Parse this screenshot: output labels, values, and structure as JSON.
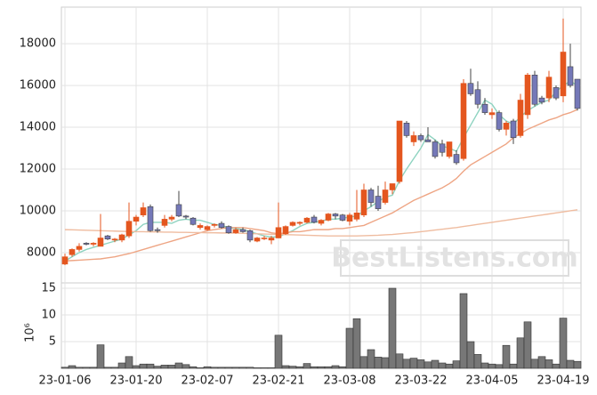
{
  "chart_data": [
    {
      "type": "candlestick",
      "watermark": "BestListens.com",
      "up_color": "#e4561f",
      "down_color": "#7478b8",
      "grid": true,
      "ylim": [
        6550,
        19750
      ],
      "yticks": [
        8000,
        10000,
        12000,
        14000,
        16000,
        18000
      ],
      "open": [
        7450,
        7900,
        8150,
        8450,
        8400,
        8300,
        8800,
        8600,
        8600,
        8800,
        9500,
        9800,
        10200,
        9100,
        9300,
        9600,
        10300,
        9750,
        9650,
        9200,
        9100,
        9300,
        9400,
        9250,
        8950,
        9100,
        9050,
        8550,
        8700,
        8600,
        8700,
        8900,
        9300,
        9400,
        9450,
        9700,
        9400,
        9550,
        9850,
        9800,
        9500,
        9600,
        9800,
        11000,
        10700,
        10400,
        11000,
        11400,
        14200,
        13300,
        13600,
        13400,
        13300,
        13200,
        12600,
        12700,
        12500,
        16100,
        15800,
        15100,
        14600,
        14700,
        13900,
        14300,
        13600,
        14600,
        16500,
        15400,
        15400,
        15900,
        15500,
        16900,
        16300
      ],
      "high": [
        7950,
        8200,
        8450,
        8500,
        8500,
        9850,
        8850,
        8700,
        8900,
        10400,
        9800,
        10400,
        10300,
        9200,
        9800,
        9800,
        10950,
        9800,
        9700,
        9400,
        9300,
        9400,
        9500,
        9300,
        9200,
        9200,
        9100,
        8750,
        8800,
        8800,
        10400,
        9300,
        9500,
        9500,
        9700,
        9800,
        9600,
        9900,
        9900,
        9850,
        9900,
        11000,
        11300,
        11100,
        11200,
        11400,
        11300,
        14300,
        14300,
        13800,
        13700,
        14000,
        13400,
        13400,
        13300,
        12900,
        16300,
        16800,
        16200,
        15400,
        14900,
        14800,
        14300,
        14400,
        15600,
        16600,
        16700,
        15500,
        16700,
        16000,
        19200,
        18000,
        16300
      ],
      "low": [
        7400,
        7800,
        8050,
        8350,
        8300,
        8300,
        8600,
        8500,
        8500,
        8700,
        9300,
        9700,
        9000,
        8950,
        9200,
        9500,
        9700,
        9600,
        9300,
        9100,
        9050,
        9200,
        9150,
        8900,
        8900,
        8950,
        8500,
        8500,
        8600,
        8400,
        8700,
        8850,
        9250,
        9300,
        9400,
        9400,
        9300,
        9500,
        9600,
        9500,
        9300,
        9500,
        9700,
        10200,
        10000,
        10300,
        10800,
        11300,
        13500,
        13100,
        13300,
        13300,
        12500,
        12600,
        12500,
        12200,
        12400,
        15500,
        14900,
        14600,
        14400,
        13800,
        13600,
        13200,
        13500,
        14400,
        15000,
        15100,
        15200,
        15300,
        15200,
        15900,
        14800
      ],
      "close": [
        7800,
        8150,
        8300,
        8400,
        8450,
        8700,
        8650,
        8650,
        8850,
        9500,
        9700,
        10150,
        9050,
        9050,
        9600,
        9700,
        9750,
        9700,
        9350,
        9300,
        9250,
        9350,
        9200,
        8950,
        9100,
        9000,
        8600,
        8700,
        8700,
        8700,
        9200,
        9250,
        9450,
        9450,
        9650,
        9450,
        9550,
        9850,
        9750,
        9550,
        9800,
        9900,
        11000,
        10400,
        10100,
        11000,
        11300,
        14300,
        13600,
        13600,
        13400,
        13300,
        12600,
        12800,
        13300,
        12300,
        16100,
        15600,
        15100,
        14700,
        14700,
        13900,
        14200,
        13500,
        15300,
        16500,
        15100,
        15200,
        16400,
        15400,
        17600,
        16000,
        14900
      ],
      "series": [
        {
          "color": "#8ed3c0",
          "values": [
            7600,
            7800,
            8000,
            8150,
            8250,
            8350,
            8450,
            8550,
            8650,
            8850,
            9050,
            9350,
            9450,
            9450,
            9450,
            9400,
            9550,
            9600,
            9550,
            9550,
            9450,
            9350,
            9300,
            9200,
            9150,
            9100,
            9000,
            8900,
            8800,
            8750,
            8750,
            8900,
            9050,
            9250,
            9400,
            9450,
            9500,
            9600,
            9600,
            9650,
            9700,
            9750,
            10000,
            10200,
            10450,
            10650,
            10750,
            11450,
            12000,
            12500,
            13000,
            13650,
            13400,
            13100,
            13000,
            12850,
            13500,
            14100,
            14700,
            15300,
            15100,
            14600,
            14300,
            14150,
            14500,
            14800,
            15000,
            15200,
            15300,
            15700,
            16000,
            16200,
            16000
          ]
        },
        {
          "color": "#eea584",
          "values": [
            7600,
            7620,
            7640,
            7660,
            7680,
            7700,
            7750,
            7800,
            7880,
            7950,
            8050,
            8150,
            8250,
            8350,
            8450,
            8550,
            8650,
            8750,
            8850,
            8950,
            9050,
            9100,
            9150,
            9200,
            9200,
            9200,
            9150,
            9100,
            9050,
            8950,
            8900,
            8950,
            9000,
            9000,
            9050,
            9100,
            9100,
            9100,
            9150,
            9150,
            9200,
            9250,
            9300,
            9450,
            9600,
            9750,
            9900,
            10100,
            10300,
            10500,
            10650,
            10800,
            10950,
            11100,
            11300,
            11550,
            11900,
            12200,
            12400,
            12600,
            12800,
            13000,
            13200,
            13500,
            13700,
            13900,
            14050,
            14200,
            14350,
            14450,
            14600,
            14700,
            14850
          ]
        },
        {
          "color": "#efbca0",
          "values": [
            9100,
            9090,
            9080,
            9070,
            9060,
            9050,
            9040,
            9030,
            9020,
            9010,
            9000,
            9000,
            8990,
            8990,
            8980,
            8980,
            8970,
            8970,
            8960,
            8960,
            8950,
            8950,
            8940,
            8940,
            8930,
            8920,
            8910,
            8900,
            8890,
            8880,
            8870,
            8860,
            8850,
            8840,
            8830,
            8820,
            8810,
            8800,
            8800,
            8800,
            8800,
            8800,
            8810,
            8820,
            8830,
            8850,
            8870,
            8900,
            8930,
            8960,
            9000,
            9040,
            9080,
            9120,
            9160,
            9200,
            9250,
            9300,
            9350,
            9400,
            9450,
            9500,
            9550,
            9600,
            9650,
            9700,
            9750,
            9800,
            9850,
            9900,
            9950,
            10000,
            10050
          ]
        }
      ]
    },
    {
      "type": "bar",
      "color": "#777777",
      "ylabel": "10⁶",
      "grid": true,
      "ylim": [
        0,
        16
      ],
      "yticks": [
        5,
        10,
        15
      ],
      "categories": [
        "23-01-06",
        null,
        null,
        null,
        null,
        null,
        null,
        null,
        null,
        null,
        "23-01-20",
        null,
        null,
        null,
        null,
        null,
        null,
        null,
        null,
        null,
        "23-02-07",
        null,
        null,
        null,
        null,
        null,
        null,
        null,
        null,
        null,
        "23-02-21",
        null,
        null,
        null,
        null,
        null,
        null,
        null,
        null,
        null,
        "23-03-08",
        null,
        null,
        null,
        null,
        null,
        null,
        null,
        null,
        null,
        "23-03-22",
        null,
        null,
        null,
        null,
        null,
        null,
        null,
        null,
        null,
        "23-04-05",
        null,
        null,
        null,
        null,
        null,
        null,
        null,
        null,
        null,
        "23-04-19",
        null,
        null
      ],
      "values": [
        0.2,
        0.5,
        0.2,
        0.2,
        0.2,
        4.4,
        0.2,
        0.2,
        1.0,
        2.2,
        0.5,
        0.8,
        0.8,
        0.4,
        0.6,
        0.6,
        1.0,
        0.7,
        0.3,
        0.1,
        0.3,
        0.2,
        0.2,
        0.2,
        0.2,
        0.2,
        0.2,
        0.1,
        0.1,
        0.1,
        6.2,
        0.5,
        0.4,
        0.3,
        0.9,
        0.3,
        0.3,
        0.3,
        0.5,
        0.3,
        7.5,
        9.3,
        2.2,
        3.5,
        2.1,
        2.0,
        15.0,
        2.7,
        1.7,
        1.9,
        1.6,
        1.2,
        1.5,
        1.0,
        0.8,
        1.4,
        14.0,
        5.0,
        2.6,
        1.0,
        0.8,
        0.7,
        4.3,
        0.8,
        5.7,
        8.7,
        1.7,
        2.2,
        1.6,
        0.8,
        9.4,
        1.5,
        1.3
      ]
    }
  ]
}
